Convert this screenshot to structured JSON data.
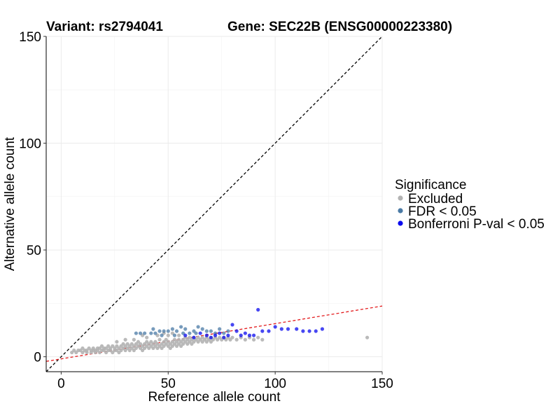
{
  "chart_data": {
    "type": "scatter",
    "title_left": "Variant: rs2794041",
    "title_right": "Gene: SEC22B (ENSG00000223380)",
    "xlabel": "Reference allele count",
    "ylabel": "Alternative allele count",
    "xlim": [
      -7,
      150
    ],
    "ylim": [
      -7,
      150
    ],
    "xticks": [
      0,
      50,
      100,
      150
    ],
    "yticks": [
      0,
      50,
      100,
      150
    ],
    "grid": true,
    "legend": {
      "title": "Significance",
      "placement": "right",
      "entries": [
        {
          "label": "Excluded",
          "color": "#b3b3b3"
        },
        {
          "label": "FDR < 0.05",
          "color": "#4a7aa5"
        },
        {
          "label": "Bonferroni P-val < 0.05",
          "color": "#0a0aee"
        }
      ]
    },
    "reference_lines": [
      {
        "name": "identity",
        "slope": 1,
        "intercept": 0,
        "style": "dashed",
        "color": "#000000"
      },
      {
        "name": "fit",
        "slope": 0.165,
        "intercept": -1.0,
        "style": "dashed",
        "color": "#e31a1c"
      }
    ],
    "series": [
      {
        "name": "Excluded",
        "color": "#b3b3b3",
        "points": [
          [
            5,
            2
          ],
          [
            6,
            3
          ],
          [
            7,
            2
          ],
          [
            8,
            3
          ],
          [
            9,
            3
          ],
          [
            10,
            2
          ],
          [
            10,
            4
          ],
          [
            11,
            3
          ],
          [
            12,
            3
          ],
          [
            12,
            2
          ],
          [
            13,
            4
          ],
          [
            14,
            3
          ],
          [
            14,
            2
          ],
          [
            15,
            3
          ],
          [
            15,
            4
          ],
          [
            16,
            2
          ],
          [
            16,
            3
          ],
          [
            17,
            4
          ],
          [
            17,
            3
          ],
          [
            18,
            2
          ],
          [
            18,
            4
          ],
          [
            19,
            3
          ],
          [
            19,
            5
          ],
          [
            20,
            3
          ],
          [
            20,
            4
          ],
          [
            21,
            2
          ],
          [
            21,
            4
          ],
          [
            22,
            3
          ],
          [
            22,
            5
          ],
          [
            23,
            3
          ],
          [
            23,
            4
          ],
          [
            24,
            2
          ],
          [
            24,
            5
          ],
          [
            25,
            3
          ],
          [
            25,
            4
          ],
          [
            26,
            5
          ],
          [
            26,
            3
          ],
          [
            27,
            4
          ],
          [
            27,
            2
          ],
          [
            28,
            3
          ],
          [
            28,
            5
          ],
          [
            29,
            4
          ],
          [
            29,
            6
          ],
          [
            30,
            3
          ],
          [
            30,
            5
          ],
          [
            31,
            4
          ],
          [
            31,
            6
          ],
          [
            32,
            3
          ],
          [
            32,
            5
          ],
          [
            33,
            4
          ],
          [
            33,
            6
          ],
          [
            34,
            5
          ],
          [
            34,
            3
          ],
          [
            35,
            4
          ],
          [
            35,
            6
          ],
          [
            36,
            5
          ],
          [
            36,
            7
          ],
          [
            37,
            4
          ],
          [
            37,
            6
          ],
          [
            38,
            5
          ],
          [
            38,
            3
          ],
          [
            39,
            6
          ],
          [
            39,
            4
          ],
          [
            40,
            5
          ],
          [
            40,
            7
          ],
          [
            41,
            6
          ],
          [
            41,
            4
          ],
          [
            42,
            5
          ],
          [
            42,
            7
          ],
          [
            43,
            6
          ],
          [
            43,
            4
          ],
          [
            44,
            5
          ],
          [
            44,
            7
          ],
          [
            45,
            6
          ],
          [
            45,
            4
          ],
          [
            46,
            5
          ],
          [
            46,
            8
          ],
          [
            47,
            6
          ],
          [
            47,
            4
          ],
          [
            48,
            7
          ],
          [
            48,
            5
          ],
          [
            49,
            6
          ],
          [
            49,
            8
          ],
          [
            50,
            5
          ],
          [
            50,
            7
          ],
          [
            51,
            6
          ],
          [
            51,
            4
          ],
          [
            52,
            7
          ],
          [
            52,
            5
          ],
          [
            53,
            6
          ],
          [
            53,
            8
          ],
          [
            54,
            7
          ],
          [
            54,
            5
          ],
          [
            55,
            6
          ],
          [
            55,
            8
          ],
          [
            56,
            7
          ],
          [
            56,
            5
          ],
          [
            57,
            8
          ],
          [
            57,
            6
          ],
          [
            58,
            7
          ],
          [
            58,
            9
          ],
          [
            59,
            6
          ],
          [
            59,
            8
          ],
          [
            60,
            7
          ],
          [
            60,
            9
          ],
          [
            61,
            8
          ],
          [
            61,
            6
          ],
          [
            62,
            7
          ],
          [
            62,
            9
          ],
          [
            63,
            8
          ],
          [
            64,
            7
          ],
          [
            64,
            9
          ],
          [
            65,
            8
          ],
          [
            66,
            7
          ],
          [
            66,
            9
          ],
          [
            67,
            8
          ],
          [
            68,
            9
          ],
          [
            68,
            7
          ],
          [
            69,
            8
          ],
          [
            70,
            9
          ],
          [
            70,
            7
          ],
          [
            71,
            8
          ],
          [
            72,
            9
          ],
          [
            73,
            8
          ],
          [
            74,
            9
          ],
          [
            75,
            8
          ],
          [
            76,
            9
          ],
          [
            77,
            8
          ],
          [
            78,
            9
          ],
          [
            79,
            8
          ],
          [
            80,
            9
          ],
          [
            82,
            8
          ],
          [
            84,
            9
          ],
          [
            86,
            8
          ],
          [
            88,
            9
          ],
          [
            90,
            8
          ],
          [
            92,
            9
          ],
          [
            94,
            8
          ],
          [
            38,
            10
          ],
          [
            40,
            9
          ],
          [
            45,
            10
          ],
          [
            48,
            11
          ],
          [
            50,
            10
          ],
          [
            52,
            11
          ],
          [
            55,
            10
          ],
          [
            30,
            8
          ],
          [
            34,
            8
          ],
          [
            26,
            7
          ],
          [
            143,
            9
          ]
        ]
      },
      {
        "name": "FDR < 0.05",
        "color": "#4a7aa5",
        "points": [
          [
            35,
            11
          ],
          [
            37,
            11
          ],
          [
            39,
            11
          ],
          [
            42,
            11
          ],
          [
            44,
            11
          ],
          [
            46,
            12
          ],
          [
            48,
            12
          ],
          [
            50,
            12
          ],
          [
            52,
            13
          ],
          [
            54,
            12
          ],
          [
            56,
            14
          ],
          [
            58,
            13
          ],
          [
            60,
            11
          ],
          [
            62,
            12
          ],
          [
            64,
            14
          ],
          [
            66,
            13
          ],
          [
            68,
            12
          ],
          [
            70,
            12
          ],
          [
            72,
            11
          ],
          [
            74,
            13
          ],
          [
            76,
            11
          ],
          [
            78,
            12
          ],
          [
            43,
            13
          ],
          [
            47,
            10
          ],
          [
            53,
            10
          ],
          [
            57,
            11
          ],
          [
            63,
            11
          ]
        ]
      },
      {
        "name": "Bonferroni P-val < 0.05",
        "color": "#0a0aee",
        "points": [
          [
            58,
            10
          ],
          [
            62,
            9
          ],
          [
            65,
            11
          ],
          [
            68,
            10
          ],
          [
            70,
            9
          ],
          [
            72,
            10
          ],
          [
            74,
            11
          ],
          [
            76,
            9
          ],
          [
            78,
            10
          ],
          [
            80,
            15
          ],
          [
            82,
            12
          ],
          [
            84,
            10
          ],
          [
            86,
            11
          ],
          [
            88,
            10
          ],
          [
            90,
            10
          ],
          [
            92,
            22
          ],
          [
            94,
            12
          ],
          [
            97,
            12
          ],
          [
            100,
            14
          ],
          [
            103,
            13
          ],
          [
            106,
            13
          ],
          [
            110,
            13
          ],
          [
            113,
            12
          ],
          [
            116,
            12
          ],
          [
            119,
            12
          ],
          [
            122,
            13
          ]
        ]
      }
    ]
  }
}
